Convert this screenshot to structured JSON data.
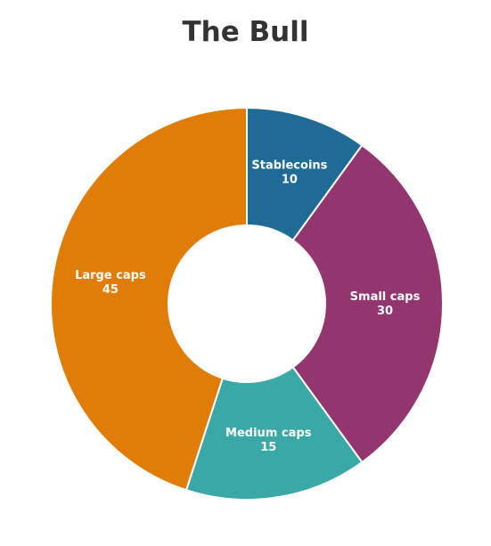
{
  "chart_data": {
    "type": "pie",
    "variant": "donut",
    "title": "The Bull",
    "slices": [
      {
        "label": "Stablecoins",
        "value": 10,
        "color": "#1f6b96"
      },
      {
        "label": "Small caps",
        "value": 30,
        "color": "#93356e"
      },
      {
        "label": "Medium caps",
        "value": 15,
        "color": "#3aa8a6"
      },
      {
        "label": "Large caps",
        "value": 45,
        "color": "#e07d08"
      }
    ],
    "labels_inside": true,
    "legend": "none"
  }
}
